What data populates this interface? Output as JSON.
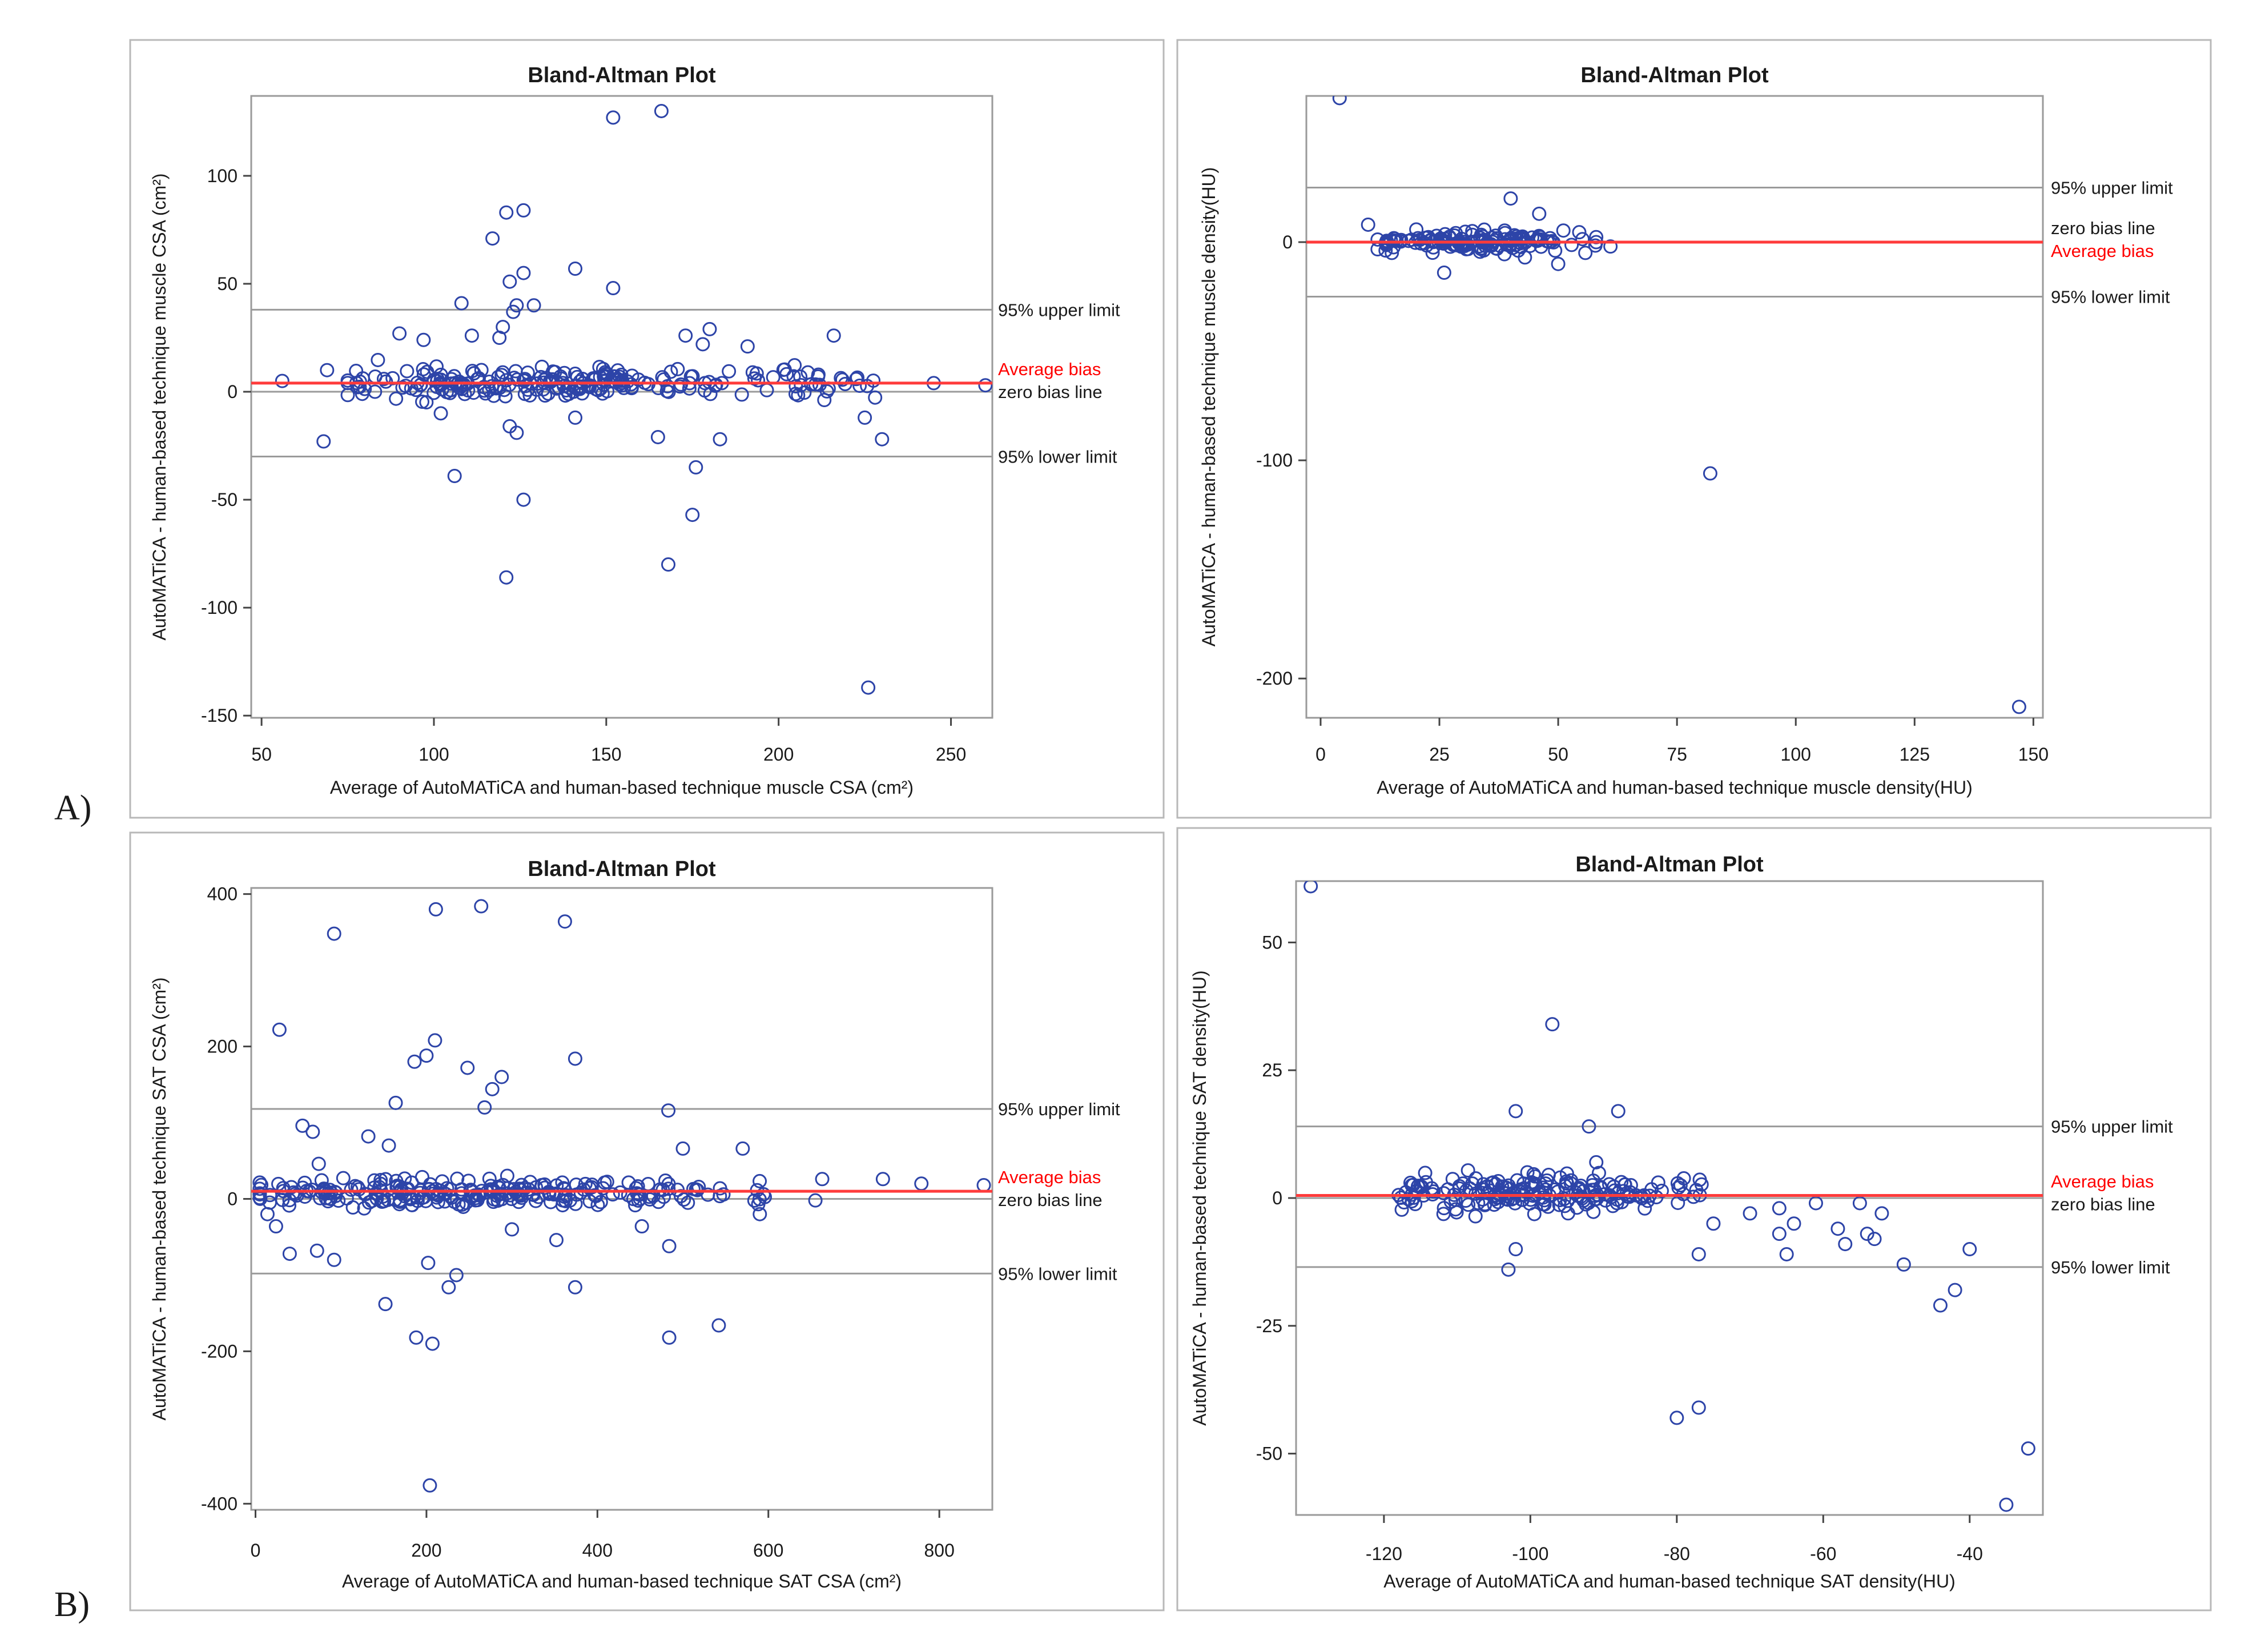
{
  "panel_labels": [
    "A)",
    "B)"
  ],
  "colors": {
    "marker": "#2d44a8",
    "bias": "#ff3b3b",
    "limit": "#9a9a9a",
    "frame": "#9a9a9a",
    "bias_label": "#ff0000",
    "text": "#1a1a1a"
  },
  "chart_data": [
    {
      "type": "scatter",
      "title": "Bland-Altman Plot",
      "xlabel": "Average of AutoMATiCA and human-based technique muscle CSA (cm²)",
      "ylabel": "AutoMATiCA - human-based technique muscle CSA (cm²)",
      "xlim": [
        47,
        262
      ],
      "ylim": [
        -151,
        137
      ],
      "xticks": [
        50,
        100,
        150,
        200,
        250
      ],
      "yticks": [
        -150,
        -100,
        -50,
        0,
        50,
        100
      ],
      "reference_lines": {
        "upper": 38,
        "bias": 4,
        "zero": 0,
        "lower": -30
      },
      "labels": {
        "upper": "95% upper limit",
        "bias": "Average bias",
        "zero": "zero bias line",
        "lower": "95% lower limit"
      },
      "label_order": [
        "bias",
        "zero"
      ],
      "outliers": [
        [
          152,
          127
        ],
        [
          166,
          130
        ],
        [
          126,
          84
        ],
        [
          121,
          83
        ],
        [
          117,
          71
        ],
        [
          141,
          57
        ],
        [
          126,
          55
        ],
        [
          122,
          51
        ],
        [
          152,
          48
        ],
        [
          129,
          40
        ],
        [
          124,
          40
        ],
        [
          108,
          41
        ],
        [
          123,
          37
        ],
        [
          120,
          30
        ],
        [
          111,
          26
        ],
        [
          119,
          25
        ],
        [
          90,
          27
        ],
        [
          97,
          24
        ],
        [
          173,
          26
        ],
        [
          180,
          29
        ],
        [
          216,
          26
        ],
        [
          178,
          22
        ],
        [
          191,
          21
        ],
        [
          68,
          -23
        ],
        [
          106,
          -39
        ],
        [
          122,
          -16
        ],
        [
          124,
          -19
        ],
        [
          165,
          -21
        ],
        [
          183,
          -22
        ],
        [
          176,
          -35
        ],
        [
          141,
          -12
        ],
        [
          175,
          -57
        ],
        [
          126,
          -50
        ],
        [
          168,
          -80
        ],
        [
          121,
          -86
        ],
        [
          226,
          -137
        ],
        [
          230,
          -22
        ],
        [
          225,
          -12
        ],
        [
          102,
          -10
        ],
        [
          56,
          5
        ],
        [
          245,
          4
        ],
        [
          260,
          3
        ],
        [
          69,
          10
        ]
      ],
      "cluster": {
        "n": 240,
        "x_range": [
          75,
          228
        ],
        "center": 130,
        "y_mean": 4,
        "y_sd": 3.5,
        "seed": 11
      }
    },
    {
      "type": "scatter",
      "title": "Bland-Altman Plot",
      "xlabel": "Average of AutoMATiCA and human-based technique muscle density(HU)",
      "ylabel": "AutoMATiCA - human-based technique muscle density(HU)",
      "xlim": [
        -3,
        152
      ],
      "ylim": [
        -218,
        67
      ],
      "xticks": [
        0,
        25,
        50,
        75,
        100,
        125,
        150
      ],
      "yticks": [
        -200,
        -100,
        0
      ],
      "reference_lines": {
        "upper": 25,
        "bias": 0,
        "zero": 0,
        "lower": -25
      },
      "labels": {
        "upper": "95% upper limit",
        "bias": "Average bias",
        "zero": "zero bias line",
        "lower": "95% lower limit"
      },
      "label_order": [
        "zero",
        "bias"
      ],
      "outliers": [
        [
          4,
          66
        ],
        [
          40,
          20
        ],
        [
          46,
          13
        ],
        [
          10,
          8
        ],
        [
          26,
          -14
        ],
        [
          50,
          -10
        ],
        [
          43,
          -7
        ],
        [
          82,
          -106
        ],
        [
          147,
          -213
        ],
        [
          61,
          -2
        ],
        [
          58,
          0
        ]
      ],
      "cluster": {
        "n": 150,
        "x_range": [
          12,
          58
        ],
        "center": 33,
        "y_mean": 0,
        "y_sd": 2.2,
        "seed": 23
      }
    },
    {
      "type": "scatter",
      "title": "Bland-Altman Plot",
      "xlabel": "Average of AutoMATiCA and human-based technique SAT CSA (cm²)",
      "ylabel": "AutoMATiCA - human-based technique SAT CSA (cm²)",
      "xlim": [
        -5,
        862
      ],
      "ylim": [
        -408,
        408
      ],
      "xticks": [
        0,
        200,
        400,
        600,
        800
      ],
      "yticks": [
        -400,
        -200,
        0,
        200,
        400
      ],
      "reference_lines": {
        "upper": 118,
        "bias": 10,
        "zero": 0,
        "lower": -98
      },
      "labels": {
        "upper": "95% upper limit",
        "bias": "Average bias",
        "zero": "zero bias line",
        "lower": "95% lower limit"
      },
      "label_order": [
        "bias",
        "zero"
      ],
      "outliers": [
        [
          264,
          384
        ],
        [
          211,
          380
        ],
        [
          362,
          364
        ],
        [
          92,
          348
        ],
        [
          28,
          222
        ],
        [
          210,
          208
        ],
        [
          200,
          188
        ],
        [
          186,
          180
        ],
        [
          374,
          184
        ],
        [
          288,
          160
        ],
        [
          277,
          144
        ],
        [
          248,
          172
        ],
        [
          268,
          120
        ],
        [
          164,
          126
        ],
        [
          483,
          116
        ],
        [
          55,
          96
        ],
        [
          67,
          88
        ],
        [
          132,
          82
        ],
        [
          156,
          70
        ],
        [
          500,
          66
        ],
        [
          570,
          66
        ],
        [
          74,
          46
        ],
        [
          655,
          -2
        ],
        [
          734,
          26
        ],
        [
          779,
          20
        ],
        [
          852,
          18
        ],
        [
          663,
          26
        ],
        [
          40,
          -72
        ],
        [
          72,
          -68
        ],
        [
          92,
          -80
        ],
        [
          202,
          -84
        ],
        [
          235,
          -100
        ],
        [
          226,
          -116
        ],
        [
          374,
          -116
        ],
        [
          152,
          -138
        ],
        [
          188,
          -182
        ],
        [
          207,
          -190
        ],
        [
          484,
          -182
        ],
        [
          542,
          -166
        ],
        [
          204,
          -376
        ],
        [
          452,
          -36
        ],
        [
          484,
          -62
        ],
        [
          352,
          -54
        ],
        [
          300,
          -40
        ],
        [
          590,
          -20
        ],
        [
          14,
          -20
        ],
        [
          24,
          -36
        ]
      ],
      "cluster": {
        "n": 260,
        "x_range": [
          5,
          600
        ],
        "center": 230,
        "y_mean": 8,
        "y_sd": 9,
        "seed": 37
      }
    },
    {
      "type": "scatter",
      "title": "Bland-Altman Plot",
      "xlabel": "Average of AutoMATiCA and human-based technique SAT density(HU)",
      "ylabel": "AutoMATiCA - human-based technique SAT density(HU)",
      "xlim": [
        -132,
        -30
      ],
      "ylim": [
        -62,
        62
      ],
      "xticks": [
        -120,
        -100,
        -80,
        -60,
        -40
      ],
      "yticks": [
        -50,
        -25,
        0,
        25,
        50
      ],
      "reference_lines": {
        "upper": 14,
        "bias": 0.5,
        "zero": 0,
        "lower": -13.5
      },
      "labels": {
        "upper": "95% upper limit",
        "bias": "Average bias",
        "zero": "zero bias line",
        "lower": "95% lower limit"
      },
      "label_order": [
        "bias",
        "zero"
      ],
      "outliers": [
        [
          -130,
          61
        ],
        [
          -97,
          34
        ],
        [
          -102,
          17
        ],
        [
          -88,
          17
        ],
        [
          -92,
          14
        ],
        [
          -91,
          7
        ],
        [
          -102,
          -10
        ],
        [
          -103,
          -14
        ],
        [
          -80,
          -43
        ],
        [
          -77,
          -41
        ],
        [
          -77,
          -11
        ],
        [
          -75,
          -5
        ],
        [
          -70,
          -3
        ],
        [
          -66,
          -7
        ],
        [
          -65,
          -11
        ],
        [
          -64,
          -5
        ],
        [
          -58,
          -6
        ],
        [
          -57,
          -9
        ],
        [
          -55,
          -1
        ],
        [
          -54,
          -7
        ],
        [
          -53,
          -8
        ],
        [
          -52,
          -3
        ],
        [
          -49,
          -13
        ],
        [
          -44,
          -21
        ],
        [
          -42,
          -18
        ],
        [
          -40,
          -10
        ],
        [
          -35,
          -60
        ],
        [
          -32,
          -49
        ],
        [
          -66,
          -2
        ],
        [
          -61,
          -1
        ]
      ],
      "cluster": {
        "n": 200,
        "x_range": [
          -118,
          -76
        ],
        "center": -100,
        "y_mean": 1,
        "y_sd": 1.8,
        "seed": 53
      }
    }
  ]
}
